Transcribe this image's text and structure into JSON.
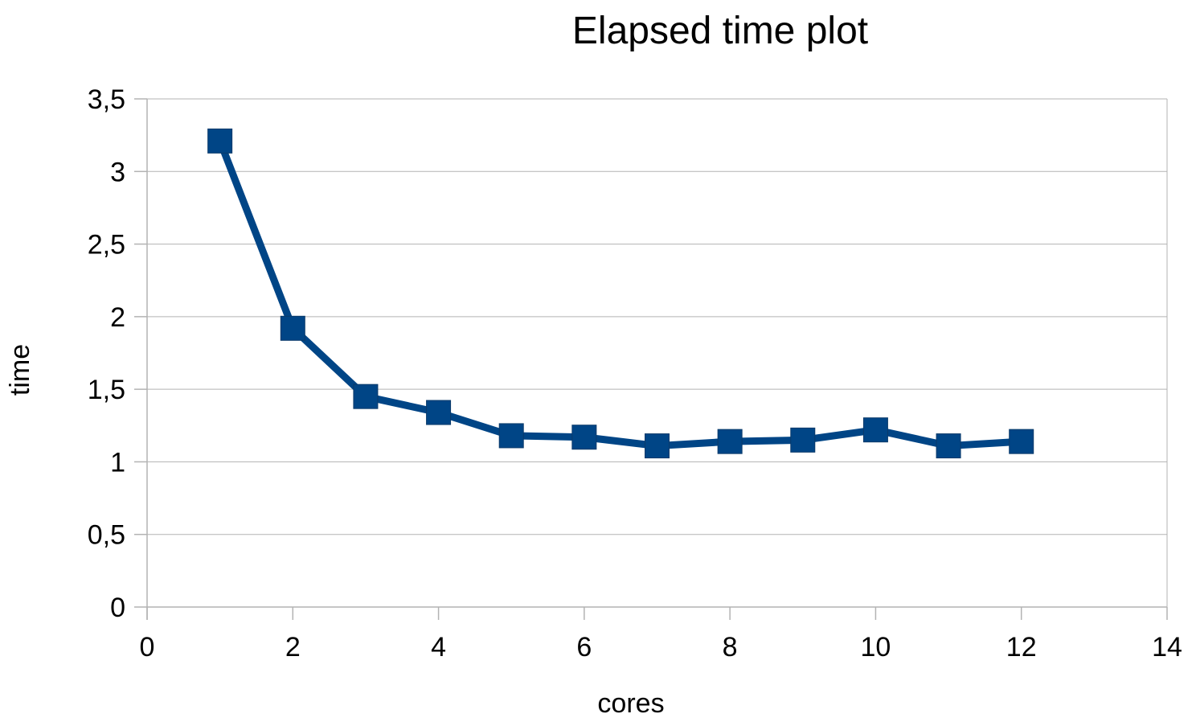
{
  "chart_data": {
    "type": "scatter",
    "title": "Elapsed time plot",
    "xlabel": "cores",
    "ylabel": "time",
    "xlim": [
      0,
      14
    ],
    "ylim": [
      0,
      3.5
    ],
    "x_ticks": [
      0,
      2,
      4,
      6,
      8,
      10,
      12,
      14
    ],
    "x_tick_labels": [
      "0",
      "2",
      "4",
      "6",
      "8",
      "10",
      "12",
      "14"
    ],
    "y_ticks": [
      0,
      0.5,
      1,
      1.5,
      2,
      2.5,
      3,
      3.5
    ],
    "y_tick_labels": [
      "0",
      "0,5",
      "1",
      "1,5",
      "2",
      "2,5",
      "3",
      "3,5"
    ],
    "grid": true,
    "legend": "none",
    "marker": "square",
    "line_color": "#004586",
    "series": [
      {
        "x": [
          1,
          2,
          3,
          4,
          5,
          6,
          7,
          8,
          9,
          10,
          11,
          12
        ],
        "y": [
          3.21,
          1.92,
          1.45,
          1.34,
          1.18,
          1.17,
          1.11,
          1.14,
          1.15,
          1.22,
          1.11,
          1.14
        ]
      }
    ]
  }
}
